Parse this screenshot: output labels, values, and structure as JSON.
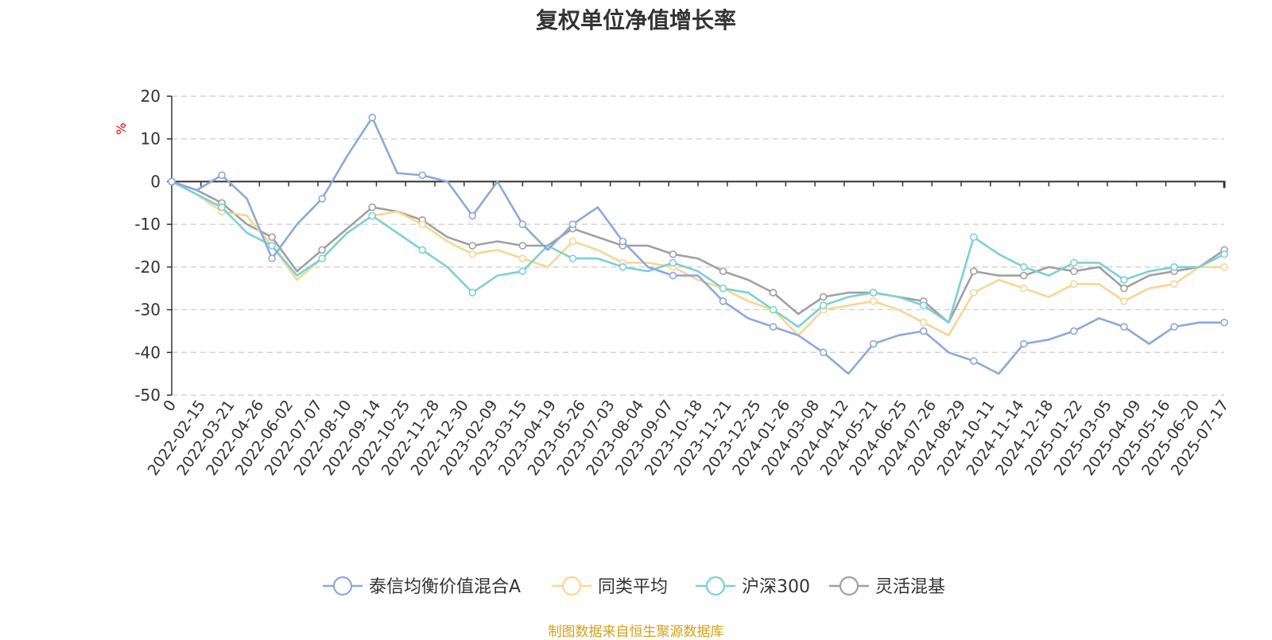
{
  "chart_data": {
    "type": "line",
    "title": "复权单位净值增长率",
    "ylabel": "%",
    "ylim": [
      -50,
      20
    ],
    "yticks": [
      20,
      10,
      0,
      -10,
      -20,
      -30,
      -40,
      -50
    ],
    "grid": true,
    "legend_position": "bottom",
    "x_tick_labels": [
      "0",
      "2022-02-15",
      "2022-03-21",
      "2022-04-26",
      "2022-06-02",
      "2022-07-07",
      "2022-08-10",
      "2022-09-14",
      "2022-10-25",
      "2022-11-28",
      "2022-12-30",
      "2023-02-09",
      "2023-03-15",
      "2023-04-19",
      "2023-05-26",
      "2023-07-03",
      "2023-08-04",
      "2023-09-07",
      "2023-10-18",
      "2023-11-21",
      "2023-12-25",
      "2024-01-26",
      "2024-03-08",
      "2024-04-12",
      "2024-05-21",
      "2024-06-25",
      "2024-07-26",
      "2024-08-29",
      "2024-10-11",
      "2024-11-14",
      "2024-12-18",
      "2025-01-22",
      "2025-03-05",
      "2025-04-09",
      "2025-05-16",
      "2025-06-20",
      "2025-07-17"
    ],
    "series": [
      {
        "name": "泰信均衡价值混合A",
        "color": "#8ca9d9",
        "values": [
          0,
          -2,
          1.5,
          -4,
          -18,
          -10,
          -4,
          6,
          15,
          2,
          1.5,
          0,
          -8,
          0,
          -10,
          -16,
          -10,
          -6,
          -14,
          -20,
          -22,
          -22,
          -28,
          -32,
          -34,
          -36,
          -40,
          -45,
          -38,
          -36,
          -35,
          -40,
          -42,
          -45,
          -38,
          -37,
          -35,
          -32,
          -34,
          -38,
          -34,
          -33,
          -33
        ]
      },
      {
        "name": "同类平均",
        "color": "#f9d593",
        "values": [
          0,
          -3,
          -7,
          -8,
          -15,
          -23,
          -18,
          -12,
          -8,
          -7,
          -10,
          -14,
          -17,
          -16,
          -18,
          -20,
          -14,
          -16,
          -19,
          -19,
          -20,
          -23,
          -25,
          -28,
          -30,
          -36,
          -30,
          -29,
          -28,
          -30,
          -33,
          -36,
          -26,
          -23,
          -25,
          -27,
          -24,
          -24,
          -28,
          -25,
          -24,
          -20,
          -20
        ]
      },
      {
        "name": "沪深300",
        "color": "#7cd0d4",
        "values": [
          0,
          -3,
          -6,
          -12,
          -15,
          -22,
          -18,
          -12,
          -8,
          -12,
          -16,
          -20,
          -26,
          -22,
          -21,
          -15,
          -18,
          -18,
          -20,
          -21,
          -19,
          -21,
          -25,
          -26,
          -30,
          -34,
          -29,
          -27,
          -26,
          -27,
          -29,
          -33,
          -13,
          -17,
          -20,
          -22,
          -19,
          -19,
          -23,
          -21,
          -20,
          -20,
          -17
        ]
      },
      {
        "name": "灵活混基",
        "color": "#a0a0a0",
        "values": [
          0,
          -2,
          -5,
          -10,
          -13,
          -21,
          -16,
          -11,
          -6,
          -7,
          -9,
          -13,
          -15,
          -14,
          -15,
          -15,
          -11,
          -13,
          -15,
          -15,
          -17,
          -18,
          -21,
          -23,
          -26,
          -31,
          -27,
          -26,
          -26,
          -27,
          -28,
          -33,
          -21,
          -22,
          -22,
          -20,
          -21,
          -20,
          -25,
          -22,
          -21,
          -20,
          -16
        ]
      }
    ]
  },
  "footnote": "制图数据来自恒生聚源数据库"
}
